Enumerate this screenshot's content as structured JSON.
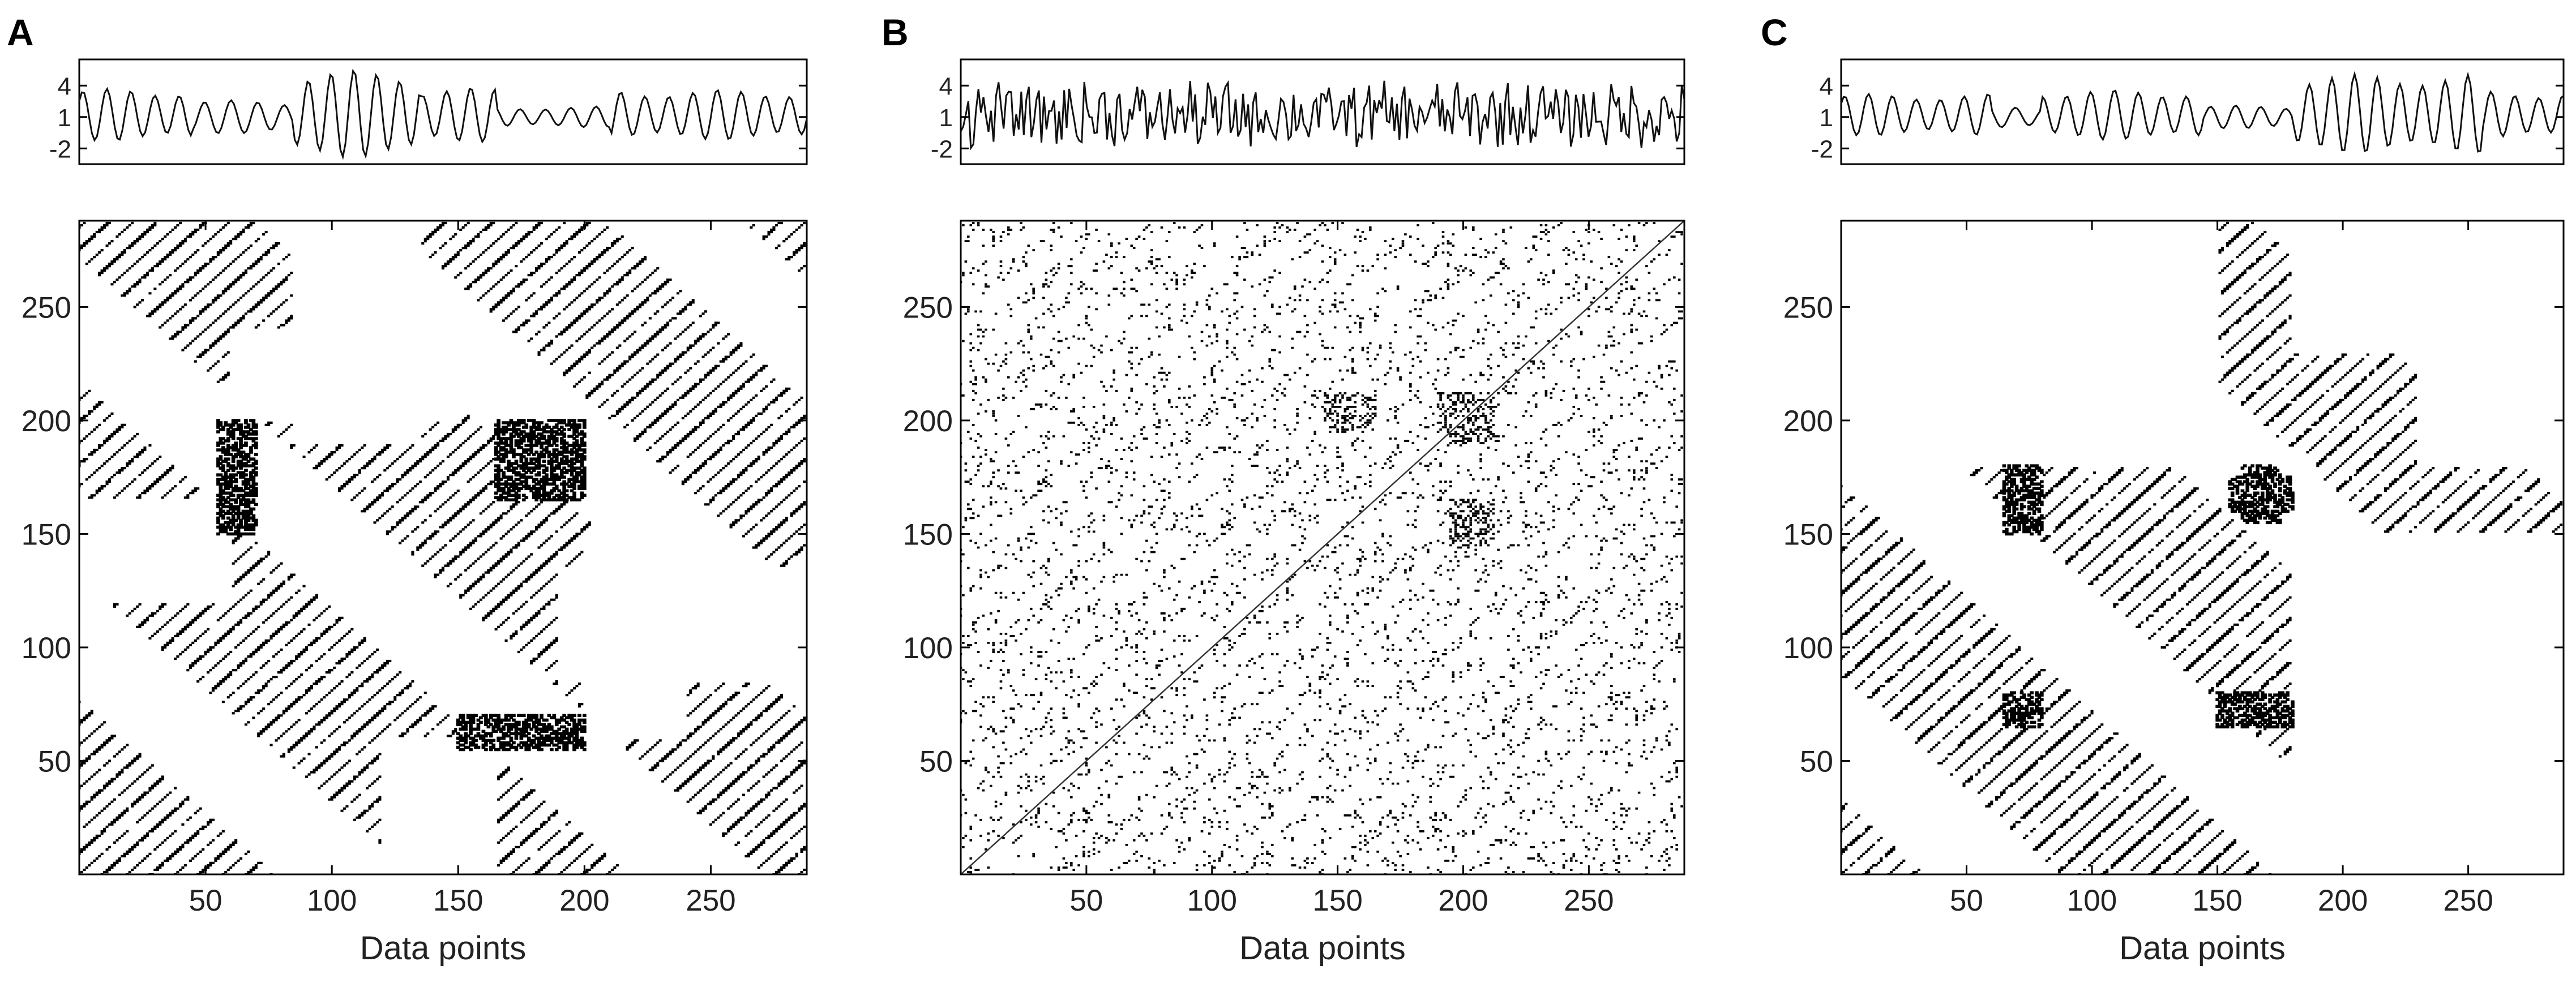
{
  "chart_data": [
    {
      "panel": "A",
      "type": "scatter",
      "signal": {
        "type": "line",
        "yticks": [
          -2,
          1,
          4
        ],
        "ytick_labels": [
          "-2",
          "1",
          "4"
        ],
        "ylim": [
          -3.5,
          6.5
        ],
        "description_free_params": {
          "n": 288,
          "segments": [
            {
              "from": 1,
              "to": 45,
              "period": 9.5,
              "amp": 2.5,
              "mean": 1.2
            },
            {
              "from": 46,
              "to": 85,
              "period": 10.5,
              "amp": 1.6,
              "mean": 1.0
            },
            {
              "from": 86,
              "to": 135,
              "period": 9.0,
              "amp": 4.2,
              "mean": 1.3
            },
            {
              "from": 136,
              "to": 165,
              "period": 9.5,
              "amp": 2.6,
              "mean": 1.2
            },
            {
              "from": 166,
              "to": 210,
              "period": 10.0,
              "amp": 1.0,
              "mean": 1.0
            },
            {
              "from": 211,
              "to": 288,
              "period": 9.5,
              "amp": 2.4,
              "mean": 1.2
            }
          ]
        }
      },
      "recurrence": {
        "style": "diagonal-lines",
        "period": 9.5,
        "dense_blocks": [
          [
            165,
            200,
            165,
            200
          ],
          [
            55,
            70,
            150,
            200
          ]
        ],
        "sparse_regions": [
          [
            85,
            135,
            190,
            288
          ],
          [
            200,
            240,
            60,
            150
          ],
          [
            120,
            165,
            0,
            60
          ]
        ],
        "density": 0.55
      },
      "xticks": [
        50,
        100,
        150,
        200,
        250
      ],
      "xtick_labels": [
        "50",
        "100",
        "150",
        "200",
        "250"
      ],
      "yticks": [
        50,
        100,
        150,
        200,
        250
      ],
      "ytick_labels": [
        "50",
        "100",
        "150",
        "200",
        "250"
      ],
      "xlim": [
        0,
        288
      ],
      "ylim": [
        0,
        288
      ],
      "xlabel": "Data points"
    },
    {
      "panel": "B",
      "type": "scatter",
      "signal": {
        "type": "line",
        "yticks": [
          -2,
          1,
          4
        ],
        "ytick_labels": [
          "-2",
          "1",
          "4"
        ],
        "ylim": [
          -3.5,
          6.5
        ],
        "description_free_params": {
          "n": 288,
          "segments": [
            {
              "from": 1,
              "to": 288,
              "period": 0,
              "amp": 2.0,
              "mean": 1.2
            }
          ]
        }
      },
      "recurrence": {
        "style": "scattered-points",
        "dense_blocks": [
          [
            195,
            212,
            190,
            210
          ],
          [
            195,
            212,
            145,
            165
          ]
        ],
        "density": 0.09
      },
      "xticks": [
        50,
        100,
        150,
        200,
        250
      ],
      "xtick_labels": [
        "50",
        "100",
        "150",
        "200",
        "250"
      ],
      "yticks": [
        50,
        100,
        150,
        200,
        250
      ],
      "ytick_labels": [
        "50",
        "100",
        "150",
        "200",
        "250"
      ],
      "xlim": [
        0,
        288
      ],
      "ylim": [
        0,
        288
      ],
      "xlabel": "Data points"
    },
    {
      "panel": "C",
      "type": "scatter",
      "signal": {
        "type": "line",
        "yticks": [
          -2,
          1,
          4
        ],
        "ytick_labels": [
          "-2",
          "1",
          "4"
        ],
        "ylim": [
          -3.5,
          6.5
        ],
        "description_free_params": {
          "n": 288,
          "segments": [
            {
              "from": 1,
              "to": 60,
              "period": 9.5,
              "amp": 2.0,
              "mean": 1.2
            },
            {
              "from": 61,
              "to": 80,
              "period": 11.0,
              "amp": 1.0,
              "mean": 1.0
            },
            {
              "from": 81,
              "to": 145,
              "period": 9.5,
              "amp": 2.4,
              "mean": 1.2
            },
            {
              "from": 146,
              "to": 180,
              "period": 10.0,
              "amp": 1.1,
              "mean": 1.0
            },
            {
              "from": 181,
              "to": 255,
              "period": 9.0,
              "amp": 3.8,
              "mean": 1.3
            },
            {
              "from": 256,
              "to": 288,
              "period": 9.5,
              "amp": 2.3,
              "mean": 1.2
            }
          ]
        }
      },
      "recurrence": {
        "style": "diagonal-lines",
        "period": 9.5,
        "dense_blocks": [
          [
            160,
            175,
            155,
            180
          ],
          [
            65,
            80,
            150,
            170
          ],
          [
            160,
            180,
            65,
            80
          ],
          [
            65,
            80,
            65,
            80
          ]
        ],
        "sparse_regions": [
          [
            180,
            288,
            0,
            150
          ],
          [
            80,
            145,
            180,
            288
          ],
          [
            230,
            288,
            180,
            288
          ]
        ],
        "density": 0.5
      },
      "xticks": [
        50,
        100,
        150,
        200,
        250
      ],
      "xtick_labels": [
        "50",
        "100",
        "150",
        "200",
        "250"
      ],
      "yticks": [
        50,
        100,
        150,
        200,
        250
      ],
      "ytick_labels": [
        "50",
        "100",
        "150",
        "200",
        "250"
      ],
      "xlim": [
        0,
        288
      ],
      "ylim": [
        0,
        288
      ],
      "xlabel": "Data points"
    }
  ],
  "panels": [
    {
      "letter": "A",
      "xlabel": "Data points"
    },
    {
      "letter": "B",
      "xlabel": "Data points"
    },
    {
      "letter": "C",
      "xlabel": "Data points"
    }
  ]
}
